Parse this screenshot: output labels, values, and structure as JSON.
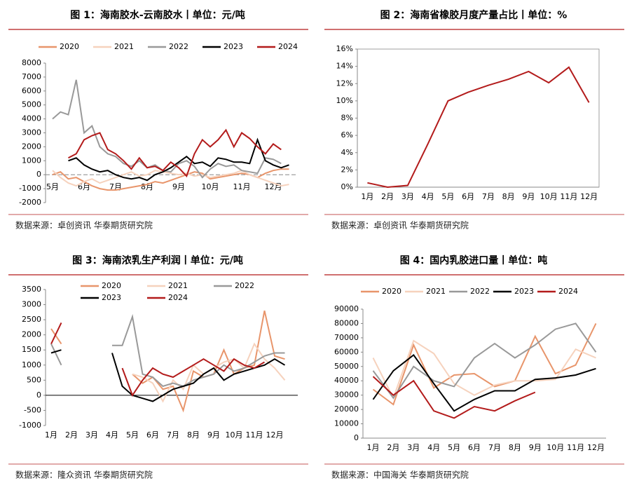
{
  "chart_data": [
    {
      "type": "line",
      "title": "图 1：海南胶水-云南胶水丨单位：元/吨",
      "source": "数据来源：卓创资讯 华泰期货研究院",
      "categories": [
        "5月",
        null,
        null,
        null,
        "6月",
        null,
        null,
        null,
        "7月",
        null,
        null,
        null,
        "8月",
        null,
        null,
        null,
        "9月",
        null,
        null,
        null,
        "10月",
        null,
        null,
        null,
        "11月",
        null,
        null,
        null,
        "12月",
        null,
        null
      ],
      "series": [
        {
          "name": "2020",
          "color": "#e8956b",
          "values": [
            0,
            200,
            -300,
            -200,
            -500,
            -800,
            -1000,
            -1100,
            -1100,
            -1000,
            -900,
            -800,
            -700,
            -500,
            -600,
            -400,
            -200,
            0,
            200,
            100,
            -300,
            -200,
            -100,
            0,
            100,
            0,
            -200,
            100,
            300,
            400,
            400
          ]
        },
        {
          "name": "2021",
          "color": "#f6d2bd",
          "values": [
            300,
            -200,
            -600,
            -800,
            -500,
            -300,
            -600,
            -400,
            -200,
            0,
            200,
            -100,
            0,
            300,
            200,
            100,
            0,
            100,
            -100,
            0,
            -200,
            -100,
            0,
            100,
            300,
            0,
            -200,
            -400,
            -600,
            -800,
            -700
          ]
        },
        {
          "name": "2022",
          "color": "#999999",
          "values": [
            4000,
            4500,
            4300,
            6800,
            3000,
            3500,
            2000,
            1500,
            1300,
            800,
            600,
            1000,
            500,
            700,
            300,
            200,
            800,
            1000,
            600,
            -200,
            400,
            800,
            600,
            700,
            300,
            200,
            100,
            1200,
            1100,
            800,
            null
          ]
        },
        {
          "name": "2023",
          "color": "#000000",
          "values": [
            null,
            null,
            1000,
            1200,
            700,
            400,
            200,
            300,
            0,
            -200,
            -300,
            -200,
            -400,
            0,
            200,
            500,
            900,
            1300,
            800,
            900,
            600,
            1200,
            1100,
            900,
            900,
            800,
            2500,
            1000,
            700,
            500,
            700
          ]
        },
        {
          "name": "2024",
          "color": "#b31b1b",
          "values": [
            null,
            null,
            1200,
            1500,
            2500,
            2800,
            3000,
            1800,
            1500,
            1000,
            400,
            1200,
            500,
            600,
            300,
            900,
            500,
            -100,
            1500,
            2500,
            2000,
            2500,
            3200,
            2000,
            3000,
            2600,
            2000,
            1500,
            2200,
            1800,
            null
          ]
        }
      ],
      "ylim": [
        -2000,
        8000
      ],
      "yticks": [
        -2000,
        -1000,
        0,
        1000,
        2000,
        3000,
        4000,
        5000,
        6000,
        7000,
        8000
      ],
      "legend": "top"
    },
    {
      "type": "line",
      "title": "图 2：海南省橡胶月度产量占比丨单位：%",
      "source": "数据来源：卓创资讯 华泰期货研究院",
      "categories": [
        "1月",
        "2月",
        "3月",
        "4月",
        "5月",
        "6月",
        "7月",
        "8月",
        "9月",
        "10月",
        "11月",
        "12月"
      ],
      "series": [
        {
          "name": null,
          "color": "#b31b1b",
          "values": [
            0.5,
            0,
            0.2,
            5,
            10,
            11,
            11.8,
            12.5,
            13.4,
            12.1,
            13.9,
            9.8
          ]
        }
      ],
      "ylim": [
        0,
        16
      ],
      "yticks": [
        {
          "value": 0,
          "label": "0%"
        },
        {
          "value": 2,
          "label": "2%"
        },
        {
          "value": 4,
          "label": "4%"
        },
        {
          "value": 6,
          "label": "6%"
        },
        {
          "value": 8,
          "label": "8%"
        },
        {
          "value": 10,
          "label": "10%"
        },
        {
          "value": 12,
          "label": "12%"
        },
        {
          "value": 14,
          "label": "14%"
        },
        {
          "value": 16,
          "label": "16%"
        }
      ]
    },
    {
      "type": "line",
      "title": "图 3：海南浓乳生产利润丨单位：元/吨",
      "source": "数据来源：隆众资讯 华泰期货研究院",
      "categories": [
        "1月",
        null,
        "2月",
        null,
        "3月",
        null,
        "4月",
        null,
        "5月",
        null,
        "6月",
        null,
        "7月",
        null,
        "8月",
        null,
        "9月",
        null,
        "10月",
        null,
        "11月",
        null,
        "12月",
        null
      ],
      "series": [
        {
          "name": "2020",
          "color": "#e8956b",
          "values": [
            2200,
            1700,
            null,
            null,
            null,
            null,
            null,
            null,
            700,
            400,
            600,
            200,
            300,
            -500,
            800,
            600,
            700,
            1500,
            700,
            900,
            1000,
            2800,
            1300,
            1200
          ]
        },
        {
          "name": "2021",
          "color": "#f6d2bd",
          "values": [
            null,
            1000,
            null,
            null,
            null,
            null,
            null,
            null,
            700,
            600,
            400,
            -200,
            500,
            200,
            1000,
            700,
            900,
            1100,
            1200,
            900,
            1700,
            1200,
            900,
            500
          ]
        },
        {
          "name": "2022",
          "color": "#999999",
          "values": [
            1700,
            1000,
            null,
            null,
            null,
            null,
            1650,
            1650,
            2600,
            700,
            600,
            300,
            400,
            300,
            500,
            600,
            700,
            1000,
            800,
            900,
            1100,
            1300,
            1400,
            1400
          ]
        },
        {
          "name": "2023",
          "color": "#000000",
          "values": [
            1400,
            1500,
            null,
            null,
            null,
            null,
            1400,
            300,
            0,
            -100,
            -200,
            0,
            200,
            300,
            400,
            700,
            900,
            500,
            700,
            800,
            900,
            1000,
            1200,
            1000
          ]
        },
        {
          "name": "2024",
          "color": "#b31b1b",
          "values": [
            1700,
            2400,
            null,
            null,
            null,
            null,
            null,
            900,
            0,
            500,
            900,
            700,
            600,
            800,
            1000,
            1200,
            1000,
            800,
            1200,
            1000,
            900,
            1100,
            null,
            null
          ]
        }
      ],
      "ylim": [
        -1000,
        3500
      ],
      "yticks": [
        -1000,
        -500,
        0,
        500,
        1000,
        1500,
        2000,
        2500,
        3000,
        3500
      ],
      "legend": "top"
    },
    {
      "type": "line",
      "title": "图 4：国内乳胶进口量丨单位：吨",
      "source": "数据来源：中国海关 华泰期货研究院",
      "categories": [
        "1月",
        "2月",
        "3月",
        "4月",
        "5月",
        "6月",
        "7月",
        "8月",
        "9月",
        "10月",
        "11月",
        "12月"
      ],
      "series": [
        {
          "name": "2020",
          "color": "#e8956b",
          "values": [
            34000,
            23500,
            65000,
            35000,
            44000,
            45000,
            36000,
            40000,
            71000,
            45000,
            51000,
            80000
          ]
        },
        {
          "name": "2021",
          "color": "#f6d2bd",
          "values": [
            56000,
            28000,
            68000,
            59000,
            38000,
            30000,
            37000,
            40000,
            40000,
            41000,
            62000,
            56000
          ]
        },
        {
          "name": "2022",
          "color": "#999999",
          "values": [
            47000,
            28000,
            50000,
            40000,
            36000,
            56000,
            66000,
            56000,
            65000,
            76000,
            80000,
            60000
          ]
        },
        {
          "name": "2023",
          "color": "#000000",
          "values": [
            27000,
            47000,
            58000,
            38000,
            19000,
            27000,
            33000,
            33000,
            41000,
            42000,
            44000,
            48500
          ]
        },
        {
          "name": "2024",
          "color": "#b31b1b",
          "values": [
            43000,
            30000,
            40000,
            19000,
            14000,
            22000,
            19000,
            26000,
            32000,
            null,
            null,
            null
          ]
        }
      ],
      "ylim": [
        0,
        90000
      ],
      "yticks": [
        0,
        10000,
        20000,
        30000,
        40000,
        50000,
        60000,
        70000,
        80000,
        90000
      ],
      "legend": "top"
    }
  ]
}
